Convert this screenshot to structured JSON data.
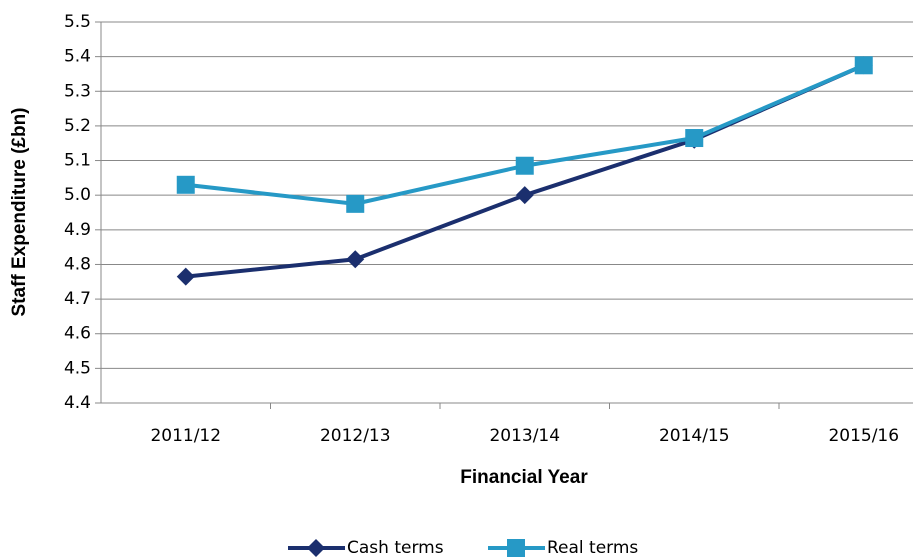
{
  "chart_data": {
    "type": "line",
    "categories": [
      "2011/12",
      "2012/13",
      "2013/14",
      "2014/15",
      "2015/16"
    ],
    "series": [
      {
        "name": "Cash terms",
        "color": "#1b2f6e",
        "marker": "diamond",
        "values": [
          4.765,
          4.815,
          5.0,
          5.16,
          5.375
        ]
      },
      {
        "name": "Real terms",
        "color": "#2699c6",
        "marker": "square",
        "values": [
          5.03,
          4.975,
          5.085,
          5.165,
          5.375
        ]
      }
    ],
    "xlabel": "Financial Year",
    "ylabel": "Staff Expenditure (£bn)",
    "ylim": [
      4.4,
      5.5
    ],
    "yticks": [
      4.4,
      4.5,
      4.6,
      4.7,
      4.8,
      4.9,
      {
        "value": 5,
        "label": "5.0"
      },
      5.1,
      5.2,
      5.3,
      5.4,
      5.5
    ],
    "grid": true,
    "legend": "bottom"
  }
}
